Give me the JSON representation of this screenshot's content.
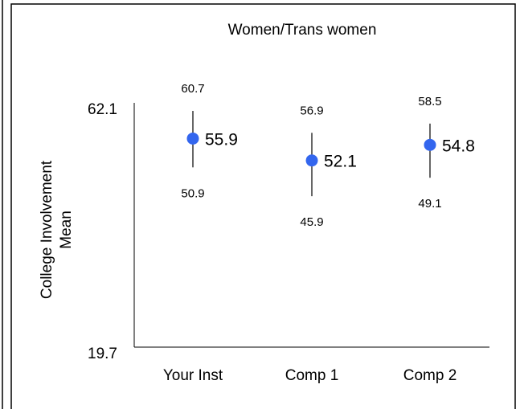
{
  "chart_data": {
    "type": "scatter",
    "title": "Women/Trans women",
    "ylabel_line1": "College Involvement",
    "ylabel_line2": "Mean",
    "ylim": [
      19.7,
      62.1
    ],
    "ytick_labels": [
      "62.1",
      "19.7"
    ],
    "categories": [
      "Your Inst",
      "Comp 1",
      "Comp 2"
    ],
    "series": [
      {
        "means": [
          55.9,
          52.1,
          54.8
        ],
        "upper": [
          60.7,
          56.9,
          58.5
        ],
        "lower": [
          50.9,
          45.9,
          49.1
        ],
        "mean_labels": [
          "55.9",
          "52.1",
          "54.8"
        ],
        "upper_labels": [
          "60.7",
          "56.9",
          "58.5"
        ],
        "lower_labels": [
          "50.9",
          "45.9",
          "49.1"
        ]
      }
    ],
    "marker_color": "#3366ee",
    "errorbar_color": "#000000",
    "grid": false,
    "legend": "none"
  }
}
